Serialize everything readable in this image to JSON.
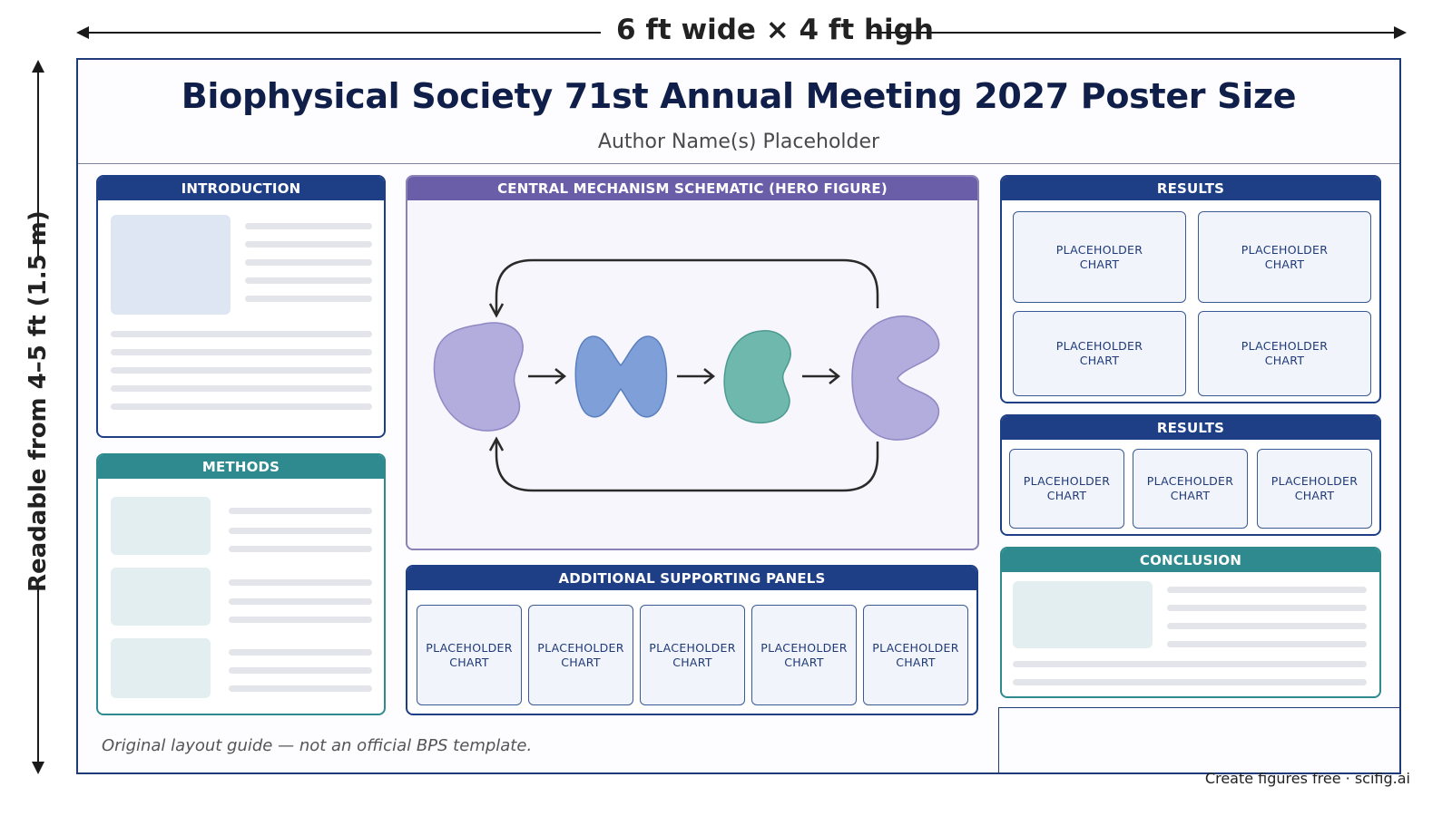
{
  "dimensions": {
    "width_label": "6 ft wide × 4 ft high",
    "height_label": "Readable from 4–5 ft (1.5 m)"
  },
  "poster": {
    "title": "Biophysical Society 71st Annual Meeting 2027 Poster Size",
    "authors": "Author Name(s) Placeholder",
    "panels": {
      "introduction": "INTRODUCTION",
      "methods": "METHODS",
      "hero": "CENTRAL MECHANISM SCHEMATIC (HERO FIGURE)",
      "supporting": "ADDITIONAL SUPPORTING PANELS",
      "results_1": "RESULTS",
      "results_2": "RESULTS",
      "conclusion": "CONCLUSION"
    },
    "chart_placeholder": [
      "PLACEHOLDER",
      "CHART"
    ],
    "footnote": "Original layout guide — not an official BPS template."
  },
  "watermark": "Create figures free · scifig.ai",
  "colors": {
    "navy": "#1e3f86",
    "teal": "#2e8a8e",
    "purple": "#6a5ea8",
    "shape_lavender": "#b3addd",
    "shape_blue": "#7e9fd8",
    "shape_teal": "#6fb8ae"
  }
}
